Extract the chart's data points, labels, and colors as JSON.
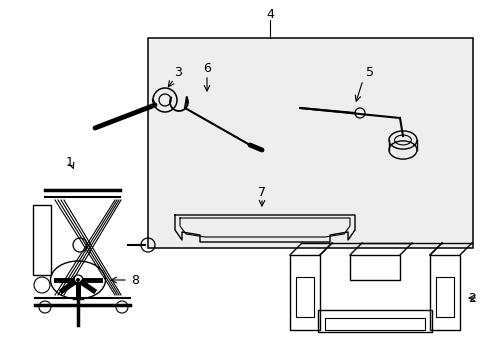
{
  "bg_color": "#ffffff",
  "line_color": "#000000",
  "box_fill": "#eeeeee",
  "fig_width": 4.89,
  "fig_height": 3.6,
  "dpi": 100
}
